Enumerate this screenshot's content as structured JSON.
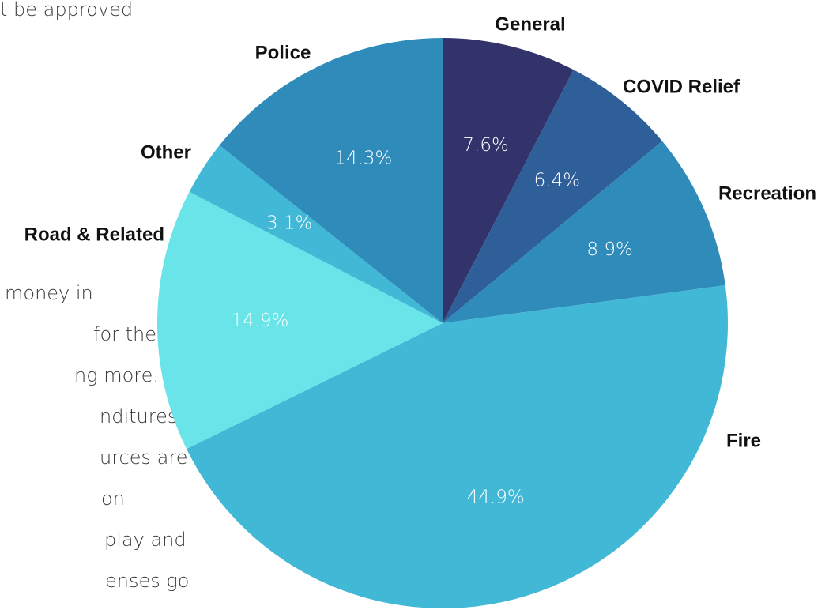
{
  "background_text": {
    "lines": [
      "t be approved",
      "money in",
      "for the",
      "ng more.",
      "nditures",
      "urces are",
      "on",
      "play and",
      "enses go"
    ]
  },
  "chart_data": {
    "type": "pie",
    "start_angle_deg": 0,
    "direction": "clockwise",
    "slices": [
      {
        "label": "General",
        "value": 7.6,
        "value_label": "7.6%",
        "color": "#33336b"
      },
      {
        "label": "COVID Relief",
        "value": 6.4,
        "value_label": "6.4%",
        "color": "#2f5f98"
      },
      {
        "label": "Recreation",
        "value": 8.9,
        "value_label": "8.9%",
        "color": "#2e8bba"
      },
      {
        "label": "Fire",
        "value": 44.9,
        "value_label": "44.9%",
        "color": "#42b8d7"
      },
      {
        "label": "Road & Related",
        "value": 14.9,
        "value_label": "14.9%",
        "color": "#69e4e8"
      },
      {
        "label": "Other",
        "value": 3.1,
        "value_label": "3.1%",
        "color": "#42b8d7"
      },
      {
        "label": "Police",
        "value": 14.3,
        "value_label": "14.3%",
        "color": "#2e8bba"
      }
    ]
  }
}
